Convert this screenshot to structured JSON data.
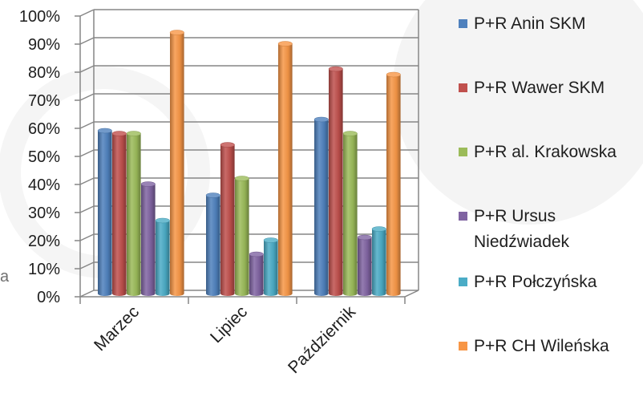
{
  "chart_data": {
    "type": "bar",
    "variant": "3d-clustered-cylinder",
    "categories": [
      "Marzec",
      "Lipiec",
      "Październik"
    ],
    "series": [
      {
        "name": "P+R Anin SKM",
        "values": [
          58,
          35,
          62
        ],
        "color": "#4F81BD"
      },
      {
        "name": "P+R Wawer SKM",
        "values": [
          57,
          53,
          80
        ],
        "color": "#C0504D"
      },
      {
        "name": "P+R al. Krakowska",
        "values": [
          57,
          41,
          57
        ],
        "color": "#9BBB59"
      },
      {
        "name": "P+R Ursus Niedźwiadek",
        "values": [
          39,
          14,
          20
        ],
        "color": "#8064A2"
      },
      {
        "name": "P+R Połczyńska",
        "values": [
          26,
          19,
          23
        ],
        "color": "#4BACC6"
      },
      {
        "name": "P+R CH Wileńska",
        "values": [
          93,
          89,
          78
        ],
        "color": "#F79646"
      }
    ],
    "ylim": [
      0,
      100
    ],
    "y_ticks": [
      0,
      10,
      20,
      30,
      40,
      50,
      60,
      70,
      80,
      90,
      100
    ],
    "y_tick_labels": [
      "0%",
      "10%",
      "20%",
      "30%",
      "40%",
      "50%",
      "60%",
      "70%",
      "80%",
      "90%",
      "100%"
    ],
    "grid": true,
    "legend_position": "right"
  },
  "edge_text": "a"
}
